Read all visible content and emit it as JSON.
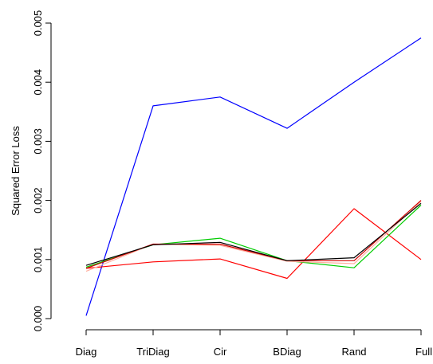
{
  "chart_data": {
    "type": "line",
    "title": "",
    "xlabel": "",
    "ylabel": "Squared Error Loss",
    "categories": [
      "Diag",
      "TriDiag",
      "Cir",
      "BDiag",
      "Rand",
      "Full"
    ],
    "y_ticks": [
      "0.000",
      "0.001",
      "0.002",
      "0.003",
      "0.004",
      "0.005"
    ],
    "y_tick_values": [
      0,
      0.001,
      0.002,
      0.003,
      0.004,
      0.005
    ],
    "ylim": [
      0,
      0.005
    ],
    "grid": false,
    "legend": "none",
    "series": [
      {
        "color": "#0000ff",
        "values": [
          5e-05,
          0.0036,
          0.00375,
          0.00322,
          0.004,
          0.00475
        ]
      },
      {
        "color": "#ff0000",
        "values": [
          0.00085,
          0.00096,
          0.00101,
          0.00068,
          0.00186,
          0.001
        ]
      },
      {
        "color": "#00cc00",
        "values": [
          0.00087,
          0.00125,
          0.00136,
          0.00098,
          0.00086,
          0.00192
        ]
      },
      {
        "color": "#ffb0a0",
        "values": [
          0.0008,
          0.00126,
          0.00124,
          0.00097,
          0.00093,
          0.00198
        ]
      },
      {
        "color": "#d00000",
        "values": [
          0.00085,
          0.00126,
          0.00126,
          0.00098,
          0.00098,
          0.002
        ]
      },
      {
        "color": "#000000",
        "values": [
          0.0009,
          0.00125,
          0.00129,
          0.00098,
          0.00103,
          0.00195
        ]
      }
    ]
  }
}
